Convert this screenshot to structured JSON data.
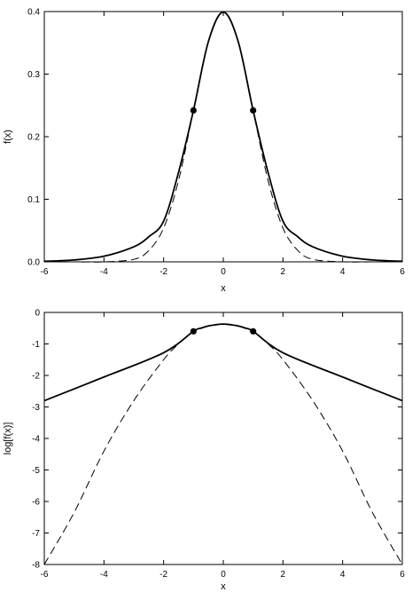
{
  "chart_data": [
    {
      "type": "line",
      "title": "",
      "xlabel": "x",
      "ylabel": "f(x)",
      "xlim": [
        -6,
        6
      ],
      "ylim": [
        0,
        0.4
      ],
      "xticks": [
        -6,
        -4,
        -2,
        0,
        2,
        4,
        6
      ],
      "yticks": [
        0.0,
        0.1,
        0.2,
        0.3,
        0.4
      ],
      "xtick_labels": [
        "-6",
        "-4",
        "-2",
        "0",
        "2",
        "4",
        "6"
      ],
      "ytick_labels": [
        "0.0",
        "0.1",
        "0.2",
        "0.3",
        "0.4"
      ],
      "grid": false,
      "legend": "none",
      "series": [
        {
          "style": "solid",
          "x": [
            -6,
            -5,
            -4,
            -3,
            -2.5,
            -2,
            -1.5,
            -1,
            -0.5,
            0,
            0.5,
            1,
            1.5,
            2,
            2.5,
            3,
            4,
            5,
            6
          ],
          "y": [
            0.001,
            0.003,
            0.009,
            0.024,
            0.04,
            0.065,
            0.143,
            0.242,
            0.352,
            0.399,
            0.352,
            0.242,
            0.143,
            0.065,
            0.04,
            0.024,
            0.009,
            0.003,
            0.001
          ]
        },
        {
          "style": "dashed",
          "x": [
            -6,
            -5,
            -4,
            -3,
            -2.5,
            -2,
            -1.5,
            -1,
            -0.5,
            0,
            0.5,
            1,
            1.5,
            2,
            2.5,
            3,
            4,
            5,
            6
          ],
          "y": [
            0.0,
            0.0,
            0.0,
            0.004,
            0.018,
            0.054,
            0.13,
            0.242,
            0.352,
            0.399,
            0.352,
            0.242,
            0.13,
            0.054,
            0.018,
            0.004,
            0.0,
            0.0,
            0.0
          ]
        }
      ],
      "points": [
        {
          "x": -1,
          "y": 0.242
        },
        {
          "x": 1,
          "y": 0.242
        }
      ]
    },
    {
      "type": "line",
      "title": "",
      "xlabel": "x",
      "ylabel": "log[f(x)]",
      "xlim": [
        -6,
        6
      ],
      "ylim": [
        -8,
        0
      ],
      "xticks": [
        -6,
        -4,
        -2,
        0,
        2,
        4,
        6
      ],
      "yticks": [
        0,
        -1,
        -2,
        -3,
        -4,
        -5,
        -6,
        -7,
        -8
      ],
      "xtick_labels": [
        "-6",
        "-4",
        "-2",
        "0",
        "2",
        "4",
        "6"
      ],
      "ytick_labels": [
        "0",
        "-1",
        "-2",
        "-3",
        "-4",
        "-5",
        "-6",
        "-7",
        "-8"
      ],
      "grid": false,
      "legend": "none",
      "series": [
        {
          "style": "solid",
          "x": [
            -6,
            -4,
            -2,
            -1,
            -0.75,
            -0.5,
            -0.25,
            0,
            0.25,
            0.5,
            0.75,
            1,
            2,
            4,
            6
          ],
          "y": [
            -2.8,
            -2.05,
            -1.28,
            -0.6,
            -0.5,
            -0.43,
            -0.39,
            -0.37,
            -0.39,
            -0.43,
            -0.5,
            -0.6,
            -1.28,
            -2.05,
            -2.8
          ]
        },
        {
          "style": "dashed",
          "x": [
            -6,
            -5,
            -4,
            -3,
            -2,
            -1.5,
            -1,
            -0.5,
            0,
            0.5,
            1,
            1.5,
            2,
            3,
            4,
            5,
            6
          ],
          "y": [
            -8.0,
            -6.35,
            -4.4,
            -2.8,
            -1.5,
            -1.0,
            -0.6,
            -0.43,
            -0.37,
            -0.43,
            -0.6,
            -1.0,
            -1.5,
            -2.8,
            -4.4,
            -6.35,
            -8.0
          ]
        }
      ],
      "points": [
        {
          "x": -1,
          "y": -0.6
        },
        {
          "x": 1,
          "y": -0.6
        }
      ]
    }
  ]
}
